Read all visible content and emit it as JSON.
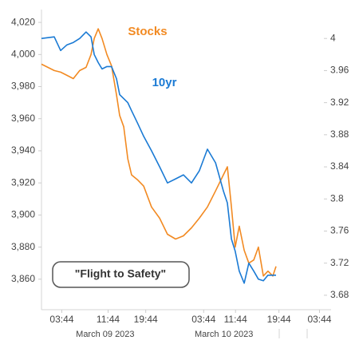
{
  "chart_data": {
    "type": "line",
    "annotation": "\"Flight to Safety\"",
    "x": [
      0,
      2.2,
      4.4,
      6.6,
      8.8,
      11.0,
      13.2,
      15.4,
      17.1,
      18.2,
      19.6,
      20.9,
      22.6,
      24.2,
      25.9,
      27.0,
      28.4,
      29.8,
      31.1,
      33.1,
      35.3,
      38.0,
      40.8,
      43.5,
      46.3,
      49.0,
      51.8,
      54.5,
      57.3,
      60.1,
      62.8,
      64.2,
      65.6,
      66.9,
      68.3,
      70.0,
      71.6,
      73.3,
      74.9,
      76.6,
      78.2,
      79.9,
      81.0
    ],
    "series": [
      {
        "name": "Stocks",
        "color": "#f28a22",
        "values": [
          3994,
          3992,
          3990,
          3989,
          3987,
          3985,
          3990,
          3992,
          4000,
          4010,
          4016,
          4010,
          4000,
          3993,
          3975,
          3962,
          3955,
          3935,
          3925,
          3922,
          3918,
          3905,
          3898,
          3888,
          3885,
          3887,
          3892,
          3898,
          3905,
          3915,
          3925,
          3930,
          3905,
          3880,
          3893,
          3878,
          3870,
          3872,
          3880,
          3862,
          3865,
          3862,
          3868
        ]
      },
      {
        "name": "10yr",
        "color": "#1a7ad4",
        "axis": "y2",
        "values": [
          4.0,
          4.001,
          4.002,
          3.985,
          3.992,
          3.995,
          4.0,
          4.008,
          4.002,
          3.98,
          3.97,
          3.962,
          3.965,
          3.965,
          3.95,
          3.93,
          3.925,
          3.92,
          3.91,
          3.895,
          3.878,
          3.86,
          3.84,
          3.82,
          3.825,
          3.83,
          3.82,
          3.835,
          3.862,
          3.845,
          3.81,
          3.795,
          3.75,
          3.735,
          3.71,
          3.695,
          3.72,
          3.71,
          3.7,
          3.698,
          3.705,
          3.705,
          3.705
        ]
      }
    ],
    "xlim": [
      0,
      100
    ],
    "xticks": [
      {
        "value": 7,
        "label": "03:44"
      },
      {
        "value": 23,
        "label": "11:44"
      },
      {
        "value": 36,
        "label": "19:44"
      },
      {
        "value": 56,
        "label": "03:44"
      },
      {
        "value": 67,
        "label": "11:44"
      },
      {
        "value": 82,
        "label": "19:44"
      },
      {
        "value": 96,
        "label": "03:44"
      }
    ],
    "date_labels": [
      {
        "x": 22,
        "label": "March 09 2023"
      },
      {
        "x": 63,
        "label": "March 10 2023"
      }
    ],
    "ylim": [
      3841,
      4028
    ],
    "yticks": [
      {
        "value": 3860,
        "label": "3,860"
      },
      {
        "value": 3880,
        "label": "3,880"
      },
      {
        "value": 3900,
        "label": "3,900"
      },
      {
        "value": 3920,
        "label": "3,920"
      },
      {
        "value": 3940,
        "label": "3,940"
      },
      {
        "value": 3960,
        "label": "3,960"
      },
      {
        "value": 3980,
        "label": "3,980"
      },
      {
        "value": 4000,
        "label": "4,000"
      },
      {
        "value": 4020,
        "label": "4,020"
      }
    ],
    "y2lim": [
      3.662,
      4.036
    ],
    "y2ticks": [
      3.68,
      3.72,
      3.76,
      3.8,
      3.84,
      3.88,
      3.92,
      3.96,
      4
    ],
    "grid": false
  }
}
